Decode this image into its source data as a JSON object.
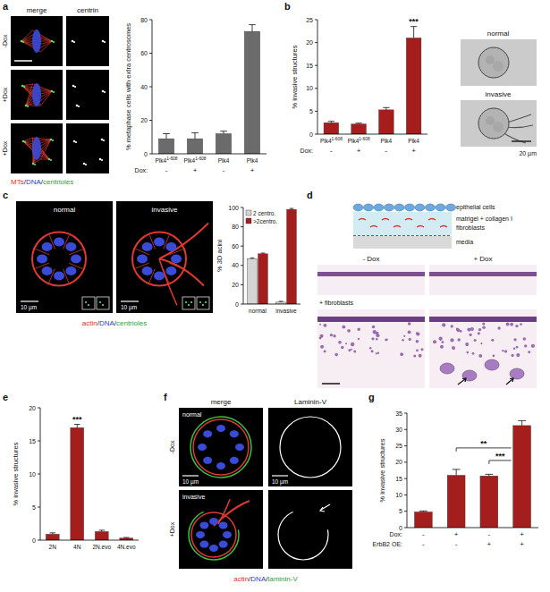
{
  "panels": [
    "a",
    "b",
    "c",
    "d",
    "e",
    "f",
    "g"
  ],
  "chart_data": [
    {
      "type": "bar",
      "y_label": "% metaphase cells with extra centrosomes",
      "categories": [
        "Plk4",
        "Plk4",
        "Plk4",
        "Plk4"
      ],
      "category_superscripts": [
        "1-608",
        "1-608",
        null,
        null
      ],
      "x_rows": [
        {
          "label": "Dox:",
          "values": [
            "-",
            "+",
            "-",
            "+"
          ]
        }
      ],
      "values": [
        9,
        9,
        12,
        73
      ],
      "errors": [
        3,
        3.5,
        1.5,
        4
      ],
      "color": "#6b6b6b",
      "ylim": [
        0,
        80
      ],
      "yticks": [
        0,
        20,
        40,
        60,
        80
      ]
    },
    {
      "type": "bar",
      "y_label": "% invasive structures",
      "categories": [
        "Plk4",
        "Plk4",
        "Plk4",
        "Plk4"
      ],
      "category_superscripts": [
        "1-608",
        "1-608",
        null,
        null
      ],
      "x_rows": [
        {
          "label": "Dox:",
          "values": [
            "-",
            "+",
            "-",
            "+"
          ]
        }
      ],
      "values": [
        2.5,
        2.2,
        5.3,
        21
      ],
      "errors": [
        0.3,
        0.2,
        0.5,
        2.5
      ],
      "color": "#a51e1e",
      "ylim": [
        0,
        25
      ],
      "yticks": [
        0,
        5,
        10,
        15,
        20,
        25
      ],
      "annotations": [
        {
          "index": 3,
          "text": "***"
        }
      ]
    },
    {
      "type": "bar",
      "y_label": "% 3D acini",
      "categories": [
        "normal",
        "invasive"
      ],
      "series": [
        {
          "name": "2 centro.",
          "color": "#d4d4d4",
          "values": [
            47,
            2
          ],
          "errors": [
            0.8,
            0.8
          ]
        },
        {
          "name": ">2centro.",
          "color": "#a51e1e",
          "values": [
            52,
            98
          ],
          "errors": [
            0.8,
            1
          ]
        }
      ],
      "ylim": [
        0,
        100
      ],
      "yticks": [
        0,
        20,
        40,
        60,
        80,
        100
      ],
      "legend": "upper left"
    },
    {
      "type": "bar",
      "y_label": "% invasive structures",
      "categories": [
        "2N",
        "4N",
        "2N.evo",
        "4N.evo"
      ],
      "values": [
        0.9,
        17,
        1.3,
        0.3
      ],
      "errors": [
        0.2,
        0.5,
        0.2,
        0.1
      ],
      "color": "#a51e1e",
      "ylim": [
        0,
        20
      ],
      "yticks": [
        0,
        5,
        10,
        15,
        20
      ],
      "annotations": [
        {
          "index": 1,
          "text": "***"
        }
      ]
    },
    {
      "type": "bar",
      "y_label": "% invasive structures",
      "categories": [
        null,
        null,
        null,
        null
      ],
      "x_rows": [
        {
          "label": "Dox:",
          "values": [
            "-",
            "+",
            "-",
            "+"
          ]
        },
        {
          "label": "ErbB2 OE:",
          "values": [
            "-",
            "-",
            "+",
            "+"
          ]
        }
      ],
      "values": [
        4.8,
        16,
        15.8,
        31.2
      ],
      "errors": [
        0.3,
        1.8,
        0.5,
        1.5
      ],
      "color": "#a51e1e",
      "ylim": [
        0,
        35
      ],
      "yticks": [
        0,
        5,
        10,
        15,
        20,
        25,
        30,
        35
      ],
      "brackets": [
        {
          "from": 1,
          "to": 3,
          "text": "**"
        },
        {
          "from": 2,
          "to": 3,
          "text": "***"
        }
      ]
    }
  ],
  "figure": {
    "a": {
      "headers": [
        "merge",
        "centrin"
      ],
      "rows": [
        "-Dox",
        "+Dox",
        "+Dox"
      ],
      "legend": [
        {
          "text": "MTs",
          "color": "#d8322a"
        },
        {
          "text": "/",
          "color": "#222222"
        },
        {
          "text": "DNA",
          "color": "#2b3fbf"
        },
        {
          "text": "/",
          "color": "#222222"
        },
        {
          "text": "centrioles",
          "color": "#2e9e3e"
        }
      ]
    },
    "b": {
      "images": [
        "normal",
        "invasive"
      ],
      "scale": "20 µm"
    },
    "c": {
      "images": [
        "normal",
        "invasive"
      ],
      "scale": "10 µm",
      "legend": [
        {
          "text": "actin",
          "color": "#d8322a"
        },
        {
          "text": "/",
          "color": "#222222"
        },
        {
          "text": "DNA",
          "color": "#2b3fbf"
        },
        {
          "text": "/",
          "color": "#222222"
        },
        {
          "text": "centrioles",
          "color": "#2e9e3e"
        }
      ]
    },
    "d": {
      "schematic": [
        "epithelial cells",
        "matrigel + collagen I",
        "fibroblasts",
        "media"
      ],
      "columns": [
        "- Dox",
        "+ Dox"
      ],
      "row_label": "+ fibroblasts"
    },
    "f": {
      "headers": [
        "merge",
        "Laminin-V"
      ],
      "rows": [
        "-Dox",
        "+Dox"
      ],
      "images": [
        "normal",
        "invasive"
      ],
      "scale": "10 µm",
      "legend": [
        {
          "text": "actin",
          "color": "#d8322a"
        },
        {
          "text": "/",
          "color": "#222222"
        },
        {
          "text": "DNA",
          "color": "#2b3fbf"
        },
        {
          "text": "/",
          "color": "#222222"
        },
        {
          "text": "laminin-V",
          "color": "#2e9e3e"
        }
      ]
    }
  }
}
